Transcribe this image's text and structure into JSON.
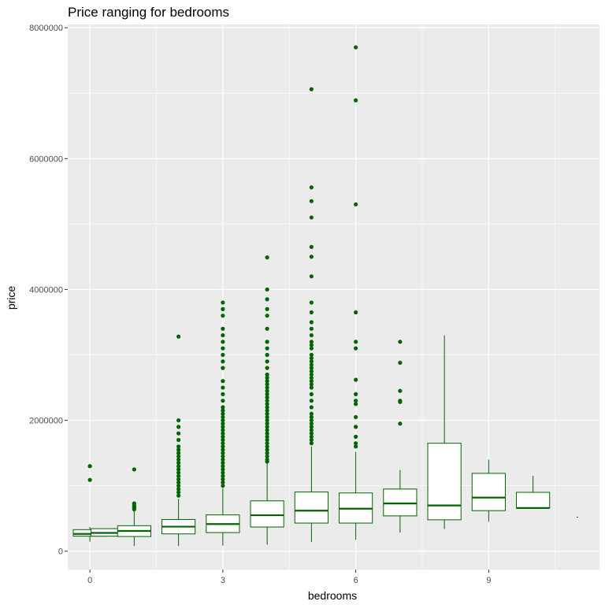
{
  "chart_data": {
    "type": "boxplot",
    "title": "Price ranging for bedrooms",
    "xlabel": "bedrooms",
    "ylabel": "price",
    "xlim": [
      -0.5,
      11.5
    ],
    "ylim": [
      -280000,
      8050000
    ],
    "x_ticks": [
      0,
      3,
      6,
      9
    ],
    "x_tick_labels": [
      "0",
      "3",
      "6",
      "9"
    ],
    "y_ticks": [
      0,
      2000000,
      4000000,
      6000000,
      8000000
    ],
    "y_tick_labels": [
      "0",
      "2000000",
      "4000000",
      "6000000",
      "8000000"
    ],
    "grid": true,
    "colors": {
      "panel": "#ebebeb",
      "grid": "#ffffff",
      "box_stroke": "#006400",
      "box_fill": "#ffffff",
      "outlier": "#006400",
      "axis_text": "#4d4d4d"
    },
    "boxes": [
      {
        "x": 0,
        "q1": 230000,
        "median": 265000,
        "q3": 330000,
        "lower": 145000,
        "upper": 370000,
        "outliers": [
          1090000,
          1300000
        ]
      },
      {
        "x": 0.4,
        "q1": 230000,
        "median": 280000,
        "q3": 345000,
        "lower": 230000,
        "upper": 345000,
        "outliers": []
      },
      {
        "x": 1,
        "q1": 225000,
        "median": 310000,
        "q3": 390000,
        "lower": 80000,
        "upper": 620000,
        "outliers": [
          640000,
          660000,
          680000,
          700000,
          730000,
          1250000
        ]
      },
      {
        "x": 2,
        "q1": 265000,
        "median": 375000,
        "q3": 485000,
        "lower": 80000,
        "upper": 800000,
        "outliers": [
          850000,
          900000,
          950000,
          1000000,
          1050000,
          1100000,
          1150000,
          1200000,
          1250000,
          1300000,
          1350000,
          1400000,
          1450000,
          1500000,
          1550000,
          1600000,
          1700000,
          1800000,
          1900000,
          2000000,
          3280000
        ]
      },
      {
        "x": 3,
        "q1": 285000,
        "median": 415000,
        "q3": 555000,
        "lower": 85000,
        "upper": 960000,
        "outliers": [
          1000000,
          1050000,
          1100000,
          1150000,
          1200000,
          1250000,
          1300000,
          1350000,
          1400000,
          1450000,
          1500000,
          1550000,
          1600000,
          1650000,
          1700000,
          1750000,
          1800000,
          1850000,
          1900000,
          1950000,
          2000000,
          2050000,
          2100000,
          2150000,
          2200000,
          2300000,
          2400000,
          2500000,
          2600000,
          2800000,
          2900000,
          3000000,
          3100000,
          3200000,
          3300000,
          3400000,
          3600000,
          3700000,
          3800000
        ]
      },
      {
        "x": 4,
        "q1": 370000,
        "median": 550000,
        "q3": 770000,
        "lower": 100000,
        "upper": 1350000,
        "outliers": [
          1370000,
          1400000,
          1450000,
          1500000,
          1550000,
          1600000,
          1650000,
          1700000,
          1750000,
          1800000,
          1850000,
          1900000,
          1950000,
          2000000,
          2050000,
          2100000,
          2150000,
          2200000,
          2250000,
          2300000,
          2350000,
          2400000,
          2450000,
          2500000,
          2550000,
          2600000,
          2650000,
          2700000,
          2800000,
          2900000,
          3000000,
          3100000,
          3200000,
          3400000,
          3600000,
          3700000,
          3850000,
          4000000,
          4490000
        ]
      },
      {
        "x": 5,
        "q1": 430000,
        "median": 620000,
        "q3": 905000,
        "lower": 140000,
        "upper": 1600000,
        "outliers": [
          1650000,
          1700000,
          1750000,
          1800000,
          1850000,
          1900000,
          1950000,
          2000000,
          2050000,
          2100000,
          2200000,
          2300000,
          2400000,
          2500000,
          2550000,
          2600000,
          2650000,
          2700000,
          2750000,
          2800000,
          2850000,
          2900000,
          2950000,
          3000000,
          3100000,
          3150000,
          3200000,
          3300000,
          3400000,
          3500000,
          3650000,
          3800000,
          4200000,
          4500000,
          4650000,
          5100000,
          5350000,
          5560000,
          7060000
        ]
      },
      {
        "x": 6,
        "q1": 430000,
        "median": 650000,
        "q3": 890000,
        "lower": 175000,
        "upper": 1520000,
        "outliers": [
          1600000,
          1650000,
          1750000,
          1900000,
          2050000,
          2250000,
          2300000,
          2400000,
          2620000,
          3100000,
          3200000,
          3650000,
          5300000,
          6890000,
          7700000
        ]
      },
      {
        "x": 7,
        "q1": 540000,
        "median": 730000,
        "q3": 950000,
        "lower": 285000,
        "upper": 1240000,
        "outliers": [
          1950000,
          2280000,
          2300000,
          2450000,
          2880000,
          3200000
        ]
      },
      {
        "x": 8,
        "q1": 480000,
        "median": 700000,
        "q3": 1650000,
        "lower": 340000,
        "upper": 3300000,
        "outliers": []
      },
      {
        "x": 9,
        "q1": 620000,
        "median": 820000,
        "q3": 1190000,
        "lower": 450000,
        "upper": 1400000,
        "outliers": []
      },
      {
        "x": 10,
        "q1": 660000,
        "median": 660000,
        "q3": 900000,
        "lower": 660000,
        "upper": 1150000,
        "outliers": []
      },
      {
        "x": 11,
        "q1": 520000,
        "median": 520000,
        "q3": 520000,
        "lower": 520000,
        "upper": 520000,
        "outliers": []
      }
    ]
  }
}
